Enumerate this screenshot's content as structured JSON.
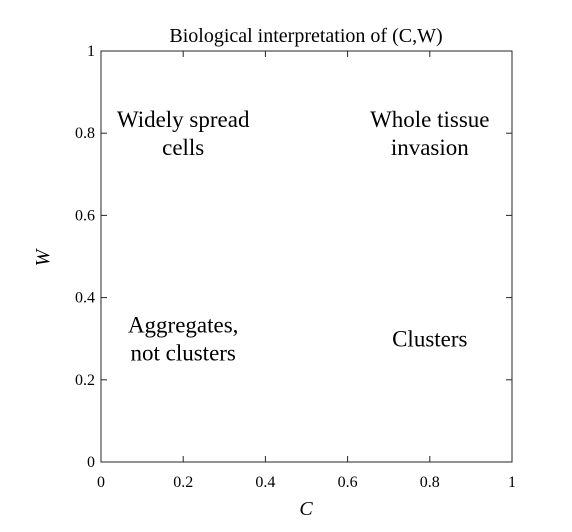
{
  "chart_data": {
    "type": "scatter",
    "title": "Biological interpretation of (C,W)",
    "xlabel": "C",
    "ylabel": "W",
    "xlim": [
      0,
      1
    ],
    "ylim": [
      0,
      1
    ],
    "grid": false,
    "x_ticks": [
      "0",
      "0.2",
      "0.4",
      "0.6",
      "0.8",
      "1"
    ],
    "y_ticks": [
      "0",
      "0.2",
      "0.4",
      "0.6",
      "0.8",
      "1"
    ],
    "x_tick_values": [
      0,
      0.2,
      0.4,
      0.6,
      0.8,
      1
    ],
    "y_tick_values": [
      0,
      0.2,
      0.4,
      0.6,
      0.8,
      1
    ],
    "regions": [
      {
        "lines": [
          "Widely spread",
          "cells"
        ],
        "x": 0.2,
        "y": 0.8
      },
      {
        "lines": [
          "Whole tissue",
          "invasion"
        ],
        "x": 0.8,
        "y": 0.8
      },
      {
        "lines": [
          "Aggregates,",
          "not clusters"
        ],
        "x": 0.2,
        "y": 0.3
      },
      {
        "lines": [
          "Clusters"
        ],
        "x": 0.8,
        "y": 0.3
      }
    ]
  }
}
